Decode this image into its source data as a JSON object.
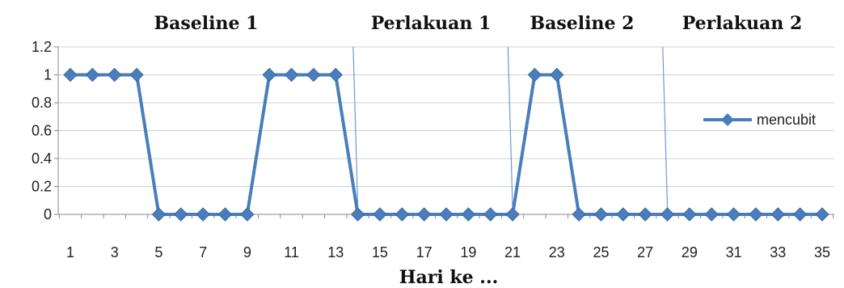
{
  "chart_data": {
    "type": "line",
    "xlabel": "Hari ke ...",
    "ylabel": "",
    "ylim": [
      0,
      1.2
    ],
    "yticks": [
      0,
      0.2,
      0.4,
      0.6,
      0.8,
      1,
      1.2
    ],
    "ytick_labels": [
      "0",
      "0.2",
      "0.4",
      "0.6",
      "0.8",
      "1",
      "1.2"
    ],
    "x": [
      1,
      2,
      3,
      4,
      5,
      6,
      7,
      8,
      9,
      10,
      11,
      12,
      13,
      14,
      15,
      16,
      17,
      18,
      19,
      20,
      21,
      22,
      23,
      24,
      25,
      26,
      27,
      28,
      29,
      30,
      31,
      32,
      33,
      34,
      35
    ],
    "xtick_labels": [
      "1",
      "3",
      "5",
      "7",
      "9",
      "11",
      "13",
      "15",
      "17",
      "19",
      "21",
      "23",
      "25",
      "27",
      "29",
      "31",
      "33",
      "35"
    ],
    "series": [
      {
        "name": "mencubit",
        "color": "#4a7ebb",
        "values": [
          1,
          1,
          1,
          1,
          0,
          0,
          0,
          0,
          0,
          1,
          1,
          1,
          1,
          0,
          0,
          0,
          0,
          0,
          0,
          0,
          0,
          1,
          1,
          0,
          0,
          0,
          0,
          0,
          0,
          0,
          0,
          0,
          0,
          0,
          0
        ]
      }
    ],
    "phases": [
      {
        "label": "Baseline 1",
        "start": 1,
        "end": 13
      },
      {
        "label": "Perlakuan 1",
        "start": 14,
        "end": 21
      },
      {
        "label": "Baseline 2",
        "start": 21,
        "end": 28
      },
      {
        "label": "Perlakuan 2",
        "start": 28,
        "end": 35
      }
    ],
    "phase_lines": [
      14,
      21,
      28
    ],
    "grid": true,
    "legend_position": "right"
  }
}
